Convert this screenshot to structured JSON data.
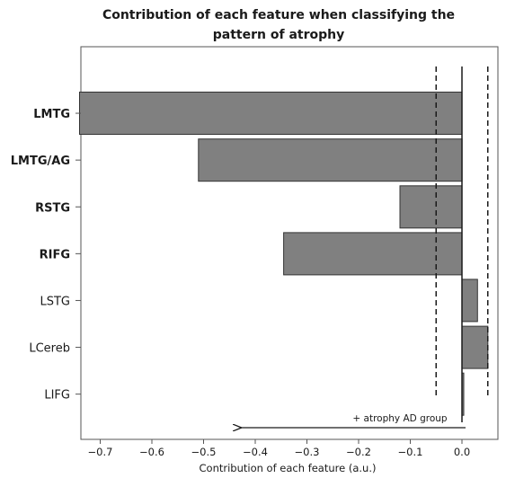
{
  "chart_data": {
    "type": "bar",
    "orientation": "horizontal",
    "title": "Contribution of each feature when classifying the pattern of atrophy",
    "title_lines": [
      "Contribution of each feature when classifying the",
      "pattern of atrophy"
    ],
    "xlabel": "Contribution of each feature (a.u.)",
    "ylabel": "",
    "categories": [
      "LMTG",
      "LMTG/AG",
      "RSTG",
      "RIFG",
      "LSTG",
      "LCereb",
      "LIFG"
    ],
    "bold_categories": [
      "LMTG",
      "LMTG/AG",
      "RSTG",
      "RIFG"
    ],
    "values": [
      -0.74,
      -0.51,
      -0.12,
      -0.345,
      0.03,
      0.05,
      0.003
    ],
    "xlim": [
      -0.78,
      0.08
    ],
    "xticks": [
      -0.7,
      -0.6,
      -0.5,
      -0.4,
      -0.3,
      -0.2,
      -0.1,
      0.0
    ],
    "xtick_labels": [
      "−0.7",
      "−0.6",
      "−0.5",
      "−0.4",
      "−0.3",
      "−0.2",
      "−0.1",
      "0.0"
    ],
    "threshold_lines": [
      -0.05,
      0.05
    ],
    "zero_line": 0.0,
    "annotation": {
      "text": "+ atrophy AD group",
      "arrow_from": 0.0,
      "arrow_to": -0.43
    },
    "grid": false,
    "bar_color": "#808080"
  }
}
